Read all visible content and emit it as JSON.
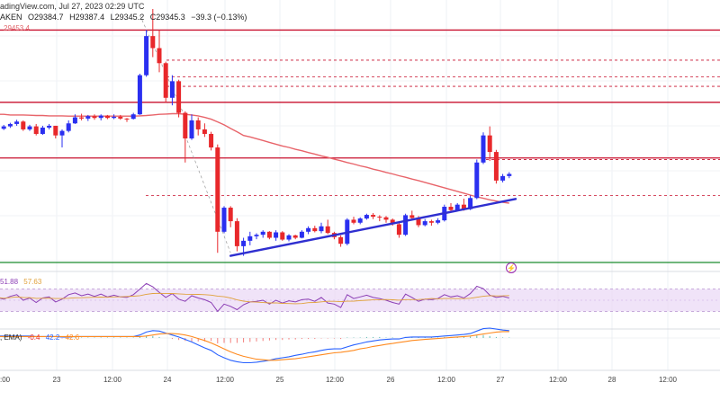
{
  "header": {
    "source_text": "adingView.com, Jul 27, 2023 02:29 UTC",
    "symbol_text": "AKEN",
    "open": "O29384.7",
    "high": "H29387.4",
    "low": "L29345.2",
    "close": "C29345.3",
    "change": "−39.3 (−0.13%)",
    "price_tag": "29453.4"
  },
  "indicators": {
    "rsi_values": [
      "51.88",
      "57.63"
    ],
    "macd_label": ", EMA)",
    "macd_values": [
      "-0.4",
      "42.2",
      "42.6"
    ]
  },
  "colors": {
    "up": "#2a2ff0",
    "down": "#e8282b",
    "ma": "#e8646a",
    "level": "#c8102e",
    "support": "#1a8c2e",
    "trendline": "#2f2fd0",
    "rsi": "#8c3fb5",
    "rsi_band": "#e9d7f5",
    "macd_line": "#2962ff",
    "signal_line": "#ff8a1f"
  },
  "chart_data": {
    "type": "candlestick",
    "x_tick_labels": [
      "23",
      "12:00",
      "24",
      "12:00",
      "25",
      "12:00",
      "26",
      "12:00",
      "27",
      "12:00",
      "28",
      "12:00"
    ],
    "x_tick_partial": ":00",
    "candles": [
      [
        29080,
        29082,
        29060,
        29062
      ],
      [
        29062,
        29075,
        29058,
        29070
      ],
      [
        29070,
        29082,
        29065,
        29078
      ],
      [
        29078,
        29092,
        29072,
        29086
      ],
      [
        29086,
        29090,
        29055,
        29060
      ],
      [
        29060,
        29075,
        29055,
        29070
      ],
      [
        29070,
        29078,
        29040,
        29045
      ],
      [
        29045,
        29072,
        29042,
        29066
      ],
      [
        29066,
        29078,
        29060,
        29072
      ],
      [
        29072,
        29072,
        29030,
        29040
      ],
      [
        29040,
        29060,
        29000,
        29055
      ],
      [
        29055,
        29090,
        29050,
        29080
      ],
      [
        29080,
        29110,
        29078,
        29100
      ],
      [
        29100,
        29112,
        29090,
        29096
      ],
      [
        29096,
        29108,
        29088,
        29104
      ],
      [
        29104,
        29110,
        29092,
        29098
      ],
      [
        29098,
        29110,
        29090,
        29106
      ],
      [
        29106,
        29108,
        29094,
        29098
      ],
      [
        29098,
        29110,
        29094,
        29102
      ],
      [
        29102,
        29108,
        29092,
        29096
      ],
      [
        29096,
        29098,
        29085,
        29095
      ],
      [
        29095,
        29115,
        29093,
        29110
      ],
      [
        29110,
        29245,
        29108,
        29240
      ],
      [
        29240,
        29390,
        29235,
        29370
      ],
      [
        29370,
        29460,
        29300,
        29330
      ],
      [
        29330,
        29390,
        29250,
        29280
      ],
      [
        29280,
        29285,
        29150,
        29165
      ],
      [
        29165,
        29240,
        29140,
        29220
      ],
      [
        29220,
        29225,
        29100,
        29115
      ],
      [
        29115,
        29120,
        28950,
        29030
      ],
      [
        29030,
        29110,
        29025,
        29090
      ],
      [
        29090,
        29100,
        29040,
        29060
      ],
      [
        29060,
        29080,
        29035,
        29045
      ],
      [
        29045,
        29052,
        28990,
        29000
      ],
      [
        29000,
        29010,
        28650,
        28720
      ],
      [
        28720,
        28805,
        28715,
        28800
      ],
      [
        28800,
        28805,
        28735,
        28755
      ],
      [
        28755,
        28765,
        28655,
        28672
      ],
      [
        28672,
        28700,
        28640,
        28690
      ],
      [
        28690,
        28720,
        28675,
        28705
      ],
      [
        28705,
        28715,
        28695,
        28710
      ],
      [
        28710,
        28725,
        28700,
        28720
      ],
      [
        28720,
        28722,
        28695,
        28700
      ],
      [
        28700,
        28725,
        28690,
        28718
      ],
      [
        28718,
        28722,
        28690,
        28694
      ],
      [
        28694,
        28712,
        28688,
        28708
      ],
      [
        28708,
        28710,
        28695,
        28700
      ],
      [
        28700,
        28725,
        28698,
        28720
      ],
      [
        28720,
        28738,
        28712,
        28732
      ],
      [
        28732,
        28740,
        28718,
        28722
      ],
      [
        28722,
        28750,
        28715,
        28738
      ],
      [
        28738,
        28760,
        28712,
        28716
      ],
      [
        28716,
        28720,
        28695,
        28702
      ],
      [
        28702,
        28708,
        28670,
        28680
      ],
      [
        28680,
        28765,
        28675,
        28760
      ],
      [
        28760,
        28770,
        28745,
        28750
      ],
      [
        28750,
        28768,
        28745,
        28764
      ],
      [
        28764,
        28780,
        28760,
        28776
      ],
      [
        28776,
        28782,
        28762,
        28770
      ],
      [
        28770,
        28775,
        28755,
        28768
      ],
      [
        28768,
        28772,
        28750,
        28760
      ],
      [
        28760,
        28764,
        28740,
        28745
      ],
      [
        28745,
        28750,
        28700,
        28710
      ],
      [
        28710,
        28780,
        28706,
        28775
      ],
      [
        28775,
        28790,
        28760,
        28766
      ],
      [
        28766,
        28772,
        28735,
        28742
      ],
      [
        28742,
        28762,
        28738,
        28755
      ],
      [
        28755,
        28760,
        28740,
        28750
      ],
      [
        28750,
        28765,
        28745,
        28758
      ],
      [
        28758,
        28810,
        28754,
        28803
      ],
      [
        28803,
        28815,
        28785,
        28792
      ],
      [
        28792,
        28815,
        28788,
        28810
      ],
      [
        28810,
        28830,
        28790,
        28795
      ],
      [
        28795,
        28840,
        28792,
        28832
      ],
      [
        28832,
        28960,
        28828,
        28950
      ],
      [
        28950,
        29050,
        28945,
        29040
      ],
      [
        29040,
        29070,
        28955,
        28985
      ],
      [
        28985,
        28992,
        28880,
        28890
      ],
      [
        28890,
        28912,
        28884,
        28905
      ],
      [
        28905,
        28918,
        28898,
        28912
      ]
    ],
    "ma200": [
      29110,
      29110,
      29108,
      29108,
      29108,
      29107,
      29106,
      29106,
      29105,
      29105,
      29105,
      29104,
      29104,
      29104,
      29104,
      29104,
      29104,
      29104,
      29104,
      29104,
      29104,
      29104,
      29105,
      29106,
      29108,
      29110,
      29111,
      29112,
      29112,
      29110,
      29108,
      29105,
      29100,
      29094,
      29085,
      29075,
      29063,
      29052,
      29040,
      29035,
      29029,
      29023,
      29017,
      29011,
      29005,
      29000,
      28994,
      28989,
      28983,
      28978,
      28972,
      28967,
      28961,
      28956,
      28950,
      28945,
      28939,
      28934,
      28928,
      28923,
      28917,
      28912,
      28906,
      28901,
      28895,
      28890,
      28884,
      28878,
      28872,
      28866,
      28860,
      28854,
      28848,
      28842,
      28836,
      28831,
      28826,
      28822,
      28818,
      28815
    ],
    "trendline": [
      [
        36,
        28640
      ],
      [
        80,
        28829
      ]
    ],
    "horizontal_levels": [
      {
        "price": 29390,
        "kind": "resistance"
      },
      {
        "price": 29150,
        "kind": "resistance"
      },
      {
        "price": 28965,
        "kind": "resistance"
      },
      {
        "price": 28618,
        "kind": "support"
      }
    ],
    "dotted_levels": [
      29290,
      29235,
      29203,
      28960,
      28840
    ],
    "ylim": [
      28600,
      29460
    ],
    "rsi": [
      55,
      52,
      57,
      60,
      50,
      54,
      46,
      54,
      56,
      47,
      52,
      60,
      63,
      58,
      61,
      57,
      61,
      56,
      59,
      56,
      55,
      60,
      70,
      80,
      74,
      64,
      55,
      62,
      52,
      48,
      58,
      54,
      51,
      46,
      30,
      43,
      39,
      33,
      42,
      47,
      48,
      50,
      43,
      50,
      45,
      49,
      47,
      51,
      52,
      48,
      55,
      45,
      43,
      37,
      60,
      53,
      56,
      59,
      55,
      53,
      50,
      46,
      43,
      61,
      55,
      48,
      52,
      51,
      53,
      60,
      56,
      58,
      54,
      62,
      75,
      71,
      59,
      55,
      57,
      54
    ],
    "rsi_band": [
      30,
      70
    ],
    "macd_hist": [
      1,
      1,
      1,
      1,
      0,
      0,
      -1,
      0,
      0,
      -1,
      -1,
      0,
      1,
      1,
      1,
      1,
      1,
      1,
      1,
      1,
      1,
      1,
      3,
      5,
      4,
      2,
      0,
      -2,
      -4,
      -6,
      -7,
      -7,
      -7,
      -6,
      -11,
      -10,
      -10,
      -10,
      -9,
      -8,
      -7,
      -6,
      -5,
      -4,
      -4,
      -3,
      -3,
      -2,
      -2,
      -2,
      -1,
      -1,
      -1,
      -2,
      1,
      1,
      1,
      2,
      2,
      2,
      1,
      1,
      0,
      2,
      2,
      1,
      1,
      1,
      1,
      2,
      2,
      2,
      2,
      3,
      5,
      6,
      4,
      2,
      1,
      1
    ],
    "macd_line": [
      4,
      4,
      4,
      4,
      4,
      4,
      3,
      3,
      3,
      3,
      2,
      2,
      3,
      3,
      3,
      3,
      3,
      3,
      3,
      3,
      3,
      3,
      6,
      12,
      15,
      14,
      10,
      6,
      2,
      -3,
      -8,
      -14,
      -20,
      -25,
      -34,
      -40,
      -45,
      -48,
      -50,
      -50,
      -49,
      -47,
      -45,
      -42,
      -40,
      -38,
      -35,
      -33,
      -30,
      -28,
      -25,
      -23,
      -22,
      -22,
      -18,
      -14,
      -11,
      -8,
      -6,
      -4,
      -3,
      -2,
      -2,
      1,
      2,
      2,
      2,
      2,
      3,
      4,
      5,
      6,
      7,
      9,
      14,
      19,
      20,
      18,
      16,
      15
    ],
    "macd_signal": [
      3,
      3,
      3,
      3,
      3,
      3,
      3,
      3,
      3,
      3,
      3,
      3,
      3,
      3,
      3,
      3,
      3,
      3,
      3,
      3,
      3,
      3,
      3,
      4,
      6,
      8,
      9,
      9,
      8,
      6,
      3,
      -1,
      -5,
      -10,
      -16,
      -22,
      -28,
      -33,
      -37,
      -40,
      -43,
      -44,
      -45,
      -45,
      -44,
      -43,
      -42,
      -40,
      -38,
      -36,
      -34,
      -32,
      -30,
      -29,
      -27,
      -25,
      -22,
      -20,
      -17,
      -15,
      -13,
      -11,
      -9,
      -7,
      -5,
      -4,
      -3,
      -2,
      -1,
      0,
      1,
      2,
      3,
      4,
      6,
      8,
      10,
      12,
      13,
      13
    ]
  }
}
